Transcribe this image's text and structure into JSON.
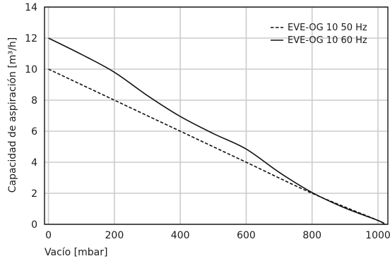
{
  "chart_data": {
    "type": "line",
    "title": "",
    "xlabel": "Vacío [mbar]",
    "ylabel": "Capacidad de aspiración [m³/h]",
    "xlim": [
      -12,
      1030
    ],
    "ylim": [
      0,
      14
    ],
    "xticks": [
      0,
      200,
      400,
      600,
      800,
      1000
    ],
    "yticks": [
      0,
      2,
      4,
      6,
      8,
      10,
      12,
      14
    ],
    "grid": true,
    "legend_position": "top-right",
    "series": [
      {
        "name": "EVE-OG 10 50 Hz",
        "style": "dashed",
        "color": "#111111",
        "x": [
          0,
          200,
          400,
          600,
          800,
          1000,
          1020
        ],
        "y": [
          10,
          8,
          6,
          4,
          2,
          0.25,
          0
        ]
      },
      {
        "name": "EVE-OG 10 60 Hz",
        "style": "solid",
        "color": "#111111",
        "x": [
          0,
          100,
          200,
          300,
          400,
          500,
          600,
          700,
          800,
          900,
          1000,
          1020
        ],
        "y": [
          12,
          10.95,
          9.8,
          8.3,
          6.95,
          5.85,
          4.85,
          3.35,
          2.05,
          1.05,
          0.25,
          0
        ]
      }
    ]
  }
}
